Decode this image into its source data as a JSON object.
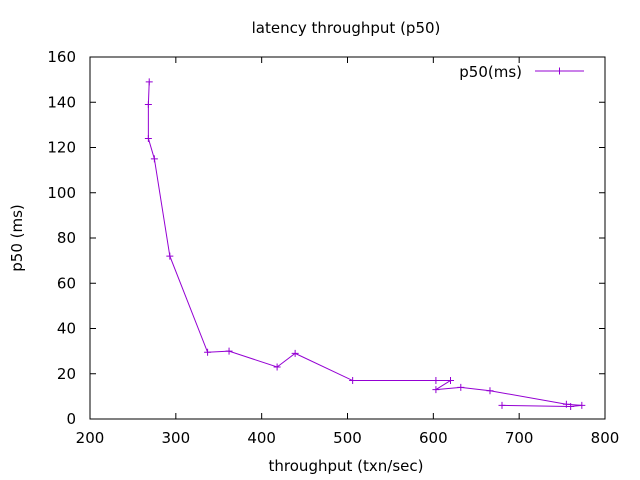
{
  "chart_data": {
    "type": "line",
    "title": "latency throughput (p50)",
    "xlabel": "throughput (txn/sec)",
    "ylabel": "p50 (ms)",
    "xlim": [
      200,
      800
    ],
    "ylim": [
      0,
      160
    ],
    "xticks": [
      200,
      300,
      400,
      500,
      600,
      700,
      800
    ],
    "yticks": [
      0,
      20,
      40,
      60,
      80,
      100,
      120,
      140,
      160
    ],
    "grid": false,
    "legend_position": "top-right",
    "series": [
      {
        "name": "p50(ms)",
        "color": "#9400d3",
        "marker": "plus",
        "points": [
          {
            "x": 269,
            "y": 149
          },
          {
            "x": 268,
            "y": 139
          },
          {
            "x": 268,
            "y": 124
          },
          {
            "x": 275,
            "y": 115
          },
          {
            "x": 293,
            "y": 72
          },
          {
            "x": 337,
            "y": 29.5
          },
          {
            "x": 362,
            "y": 30
          },
          {
            "x": 418,
            "y": 23
          },
          {
            "x": 439,
            "y": 29
          },
          {
            "x": 506,
            "y": 17
          },
          {
            "x": 603,
            "y": 17
          },
          {
            "x": 620,
            "y": 17
          },
          {
            "x": 603,
            "y": 13
          },
          {
            "x": 632,
            "y": 14
          },
          {
            "x": 666,
            "y": 12.5
          },
          {
            "x": 755,
            "y": 6.5
          },
          {
            "x": 773,
            "y": 6
          },
          {
            "x": 760,
            "y": 5.5
          },
          {
            "x": 680,
            "y": 6
          }
        ]
      }
    ]
  }
}
